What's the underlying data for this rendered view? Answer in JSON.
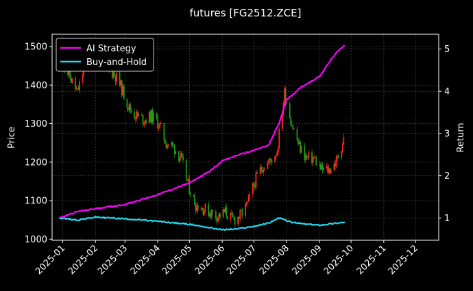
{
  "chart_data": {
    "type": "line",
    "title": "futures [FG2512.ZCE]",
    "ylabel_left": "Price",
    "ylabel_right": "Return",
    "x_ticks": [
      "2025-01",
      "2025-02",
      "2025-03",
      "2025-04",
      "2025-05",
      "2025-06",
      "2025-07",
      "2025-08",
      "2025-09",
      "2025-10",
      "2025-11",
      "2025-12"
    ],
    "y_left_ticks": [
      1000,
      1100,
      1200,
      1300,
      1400,
      1500
    ],
    "y_right_ticks": [
      1,
      2,
      3,
      4,
      5
    ],
    "ylim_left": [
      997,
      1532
    ],
    "ylim_right": [
      0.47,
      5.35
    ],
    "xlim": [
      "2024-12-22",
      "2025-12-23"
    ],
    "grid": true,
    "legend_position": "top-left",
    "colors": {
      "up": "#ff2a1a",
      "down": "#1a9e1a",
      "ai": "#ff00ff",
      "bh": "#22d8ee",
      "grid": "#555555"
    },
    "price_series": {
      "name": "",
      "x": [
        "2025-01-01",
        "2025-01-08",
        "2025-01-15",
        "2025-01-22",
        "2025-02-05",
        "2025-02-12",
        "2025-02-19",
        "2025-02-26",
        "2025-03-05",
        "2025-03-12",
        "2025-03-19",
        "2025-03-26",
        "2025-04-02",
        "2025-04-09",
        "2025-04-16",
        "2025-04-23",
        "2025-04-30",
        "2025-05-07",
        "2025-05-14",
        "2025-05-21",
        "2025-05-28",
        "2025-06-04",
        "2025-06-11",
        "2025-06-18",
        "2025-06-25",
        "2025-07-02",
        "2025-07-09",
        "2025-07-16",
        "2025-07-23",
        "2025-07-30",
        "2025-08-06",
        "2025-08-13",
        "2025-08-20",
        "2025-08-27",
        "2025-09-03",
        "2025-09-10",
        "2025-09-17",
        "2025-09-24"
      ],
      "values": [
        1460,
        1420,
        1380,
        1450,
        1470,
        1440,
        1430,
        1390,
        1340,
        1320,
        1310,
        1320,
        1300,
        1250,
        1240,
        1210,
        1140,
        1090,
        1080,
        1070,
        1060,
        1070,
        1050,
        1060,
        1090,
        1150,
        1190,
        1200,
        1230,
        1380,
        1300,
        1240,
        1210,
        1210,
        1180,
        1180,
        1200,
        1260
      ]
    },
    "series": [
      {
        "name": "AI Strategy",
        "x": [
          "2024-12-29",
          "2025-01-15",
          "2025-02-01",
          "2025-03-01",
          "2025-04-01",
          "2025-05-01",
          "2025-05-20",
          "2025-06-01",
          "2025-06-15",
          "2025-07-01",
          "2025-07-15",
          "2025-07-25",
          "2025-08-01",
          "2025-08-15",
          "2025-09-01",
          "2025-09-15",
          "2025-09-25"
        ],
        "values": [
          1.0,
          1.15,
          1.22,
          1.32,
          1.55,
          1.83,
          2.1,
          2.35,
          2.48,
          2.6,
          2.72,
          3.25,
          3.8,
          4.1,
          4.35,
          4.85,
          5.1
        ]
      },
      {
        "name": "Buy-and-Hold",
        "x": [
          "2024-12-29",
          "2025-01-15",
          "2025-02-01",
          "2025-03-01",
          "2025-04-01",
          "2025-05-01",
          "2025-06-01",
          "2025-06-15",
          "2025-07-01",
          "2025-07-15",
          "2025-07-25",
          "2025-08-05",
          "2025-08-20",
          "2025-09-01",
          "2025-09-15",
          "2025-09-25"
        ],
        "values": [
          1.0,
          0.95,
          1.02,
          0.98,
          0.92,
          0.85,
          0.72,
          0.74,
          0.8,
          0.88,
          1.0,
          0.9,
          0.85,
          0.83,
          0.87,
          0.9
        ]
      }
    ]
  }
}
